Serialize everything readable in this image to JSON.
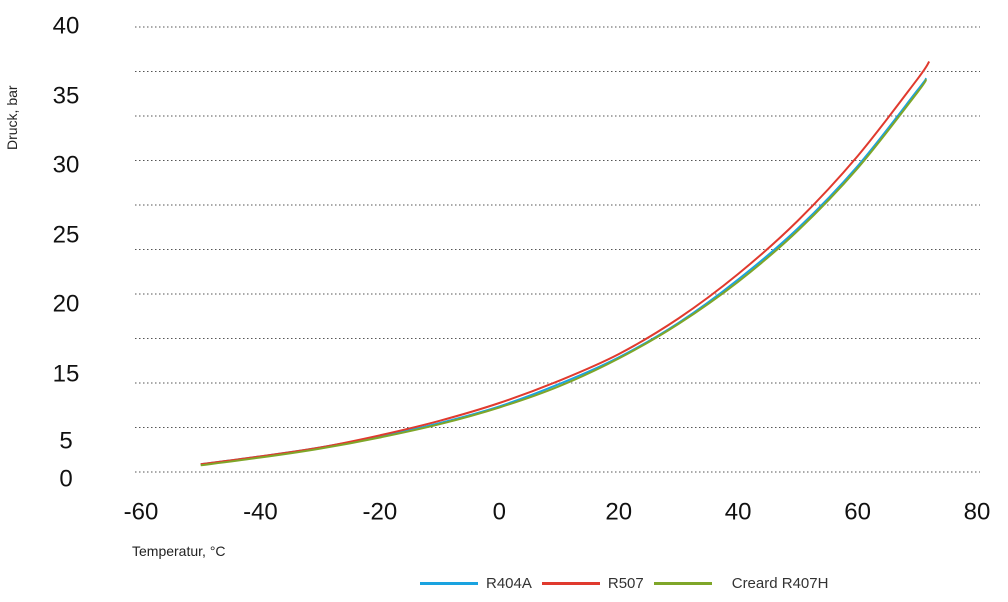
{
  "chart_data": {
    "type": "line",
    "title": "",
    "xlabel": "Temperatur, °C",
    "ylabel": "Druck, bar",
    "xlim": [
      -60,
      80
    ],
    "ylim": [
      0,
      40
    ],
    "x_ticks": [
      "-60",
      "-40",
      "-20",
      "0",
      "20",
      "40",
      "60",
      "80"
    ],
    "y_ticks": [
      {
        "label": "40",
        "value": 40
      },
      {
        "label": "35",
        "value": 35
      },
      {
        "label": "30",
        "value": 30
      },
      {
        "label": "25",
        "value": 25
      },
      {
        "label": "20",
        "value": 20
      },
      {
        "label": "15",
        "value": 15
      },
      {
        "label": "5",
        "value": 5
      },
      {
        "label": "0",
        "value": 0
      }
    ],
    "grid_y": [
      0,
      4,
      8,
      12,
      16,
      20,
      24,
      28,
      32,
      36,
      40
    ],
    "grid": "horizontal dotted",
    "legend_position": "bottom",
    "series": [
      {
        "name": "R404A",
        "color": "#1aa3e0",
        "x": [
          -50,
          -40,
          -30,
          -20,
          -10,
          0,
          10,
          20,
          30,
          40,
          50,
          60,
          70,
          71.5
        ],
        "y": [
          0.7,
          1.4,
          2.2,
          3.2,
          4.4,
          5.9,
          7.9,
          10.3,
          13.4,
          17.3,
          21.9,
          27.5,
          34.3,
          35.4
        ]
      },
      {
        "name": "R507",
        "color": "#e03a2e",
        "x": [
          -50,
          -40,
          -30,
          -20,
          -10,
          0,
          10,
          20,
          30,
          40,
          50,
          60,
          70,
          72
        ],
        "y": [
          0.7,
          1.4,
          2.2,
          3.3,
          4.6,
          6.2,
          8.2,
          10.6,
          13.8,
          17.8,
          22.6,
          28.4,
          35.3,
          36.9
        ]
      },
      {
        "name": "Creard R407H",
        "color": "#7fa629",
        "x": [
          -50,
          -40,
          -30,
          -20,
          -10,
          0,
          10,
          20,
          30,
          40,
          50,
          60,
          70,
          71.5
        ],
        "y": [
          0.6,
          1.3,
          2.1,
          3.1,
          4.3,
          5.8,
          7.7,
          10.2,
          13.3,
          17.1,
          21.7,
          27.3,
          34.1,
          35.3
        ]
      }
    ]
  }
}
